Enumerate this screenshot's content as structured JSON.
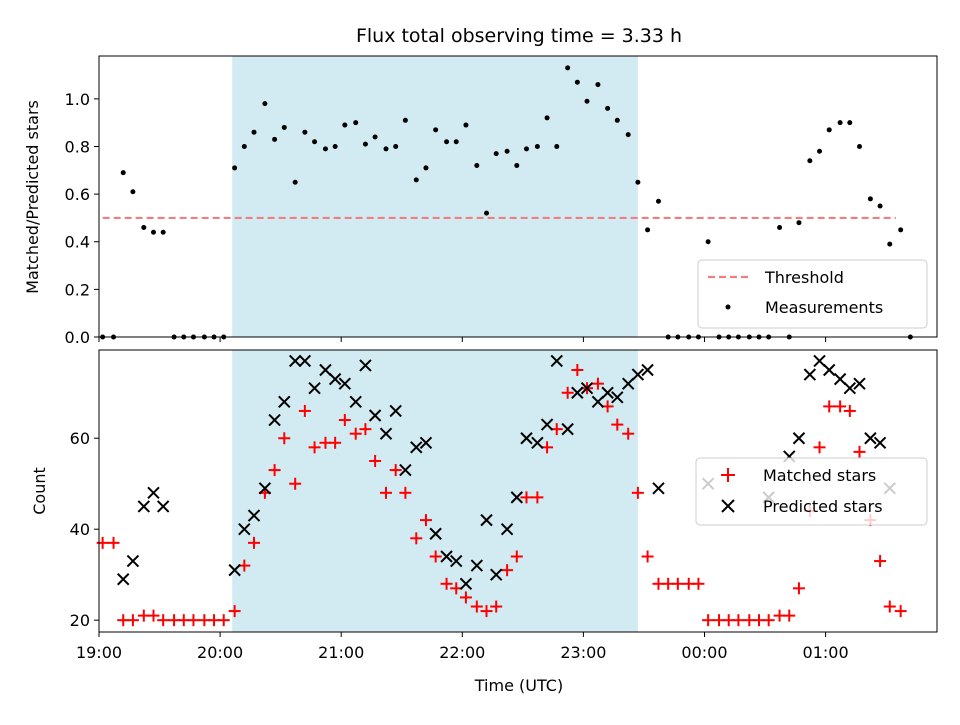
{
  "chart_data": {
    "type": "scatter",
    "title": "Flux total observing time = 3.33 h",
    "xlabel": "Time (UTC)",
    "x_ticks": [
      "19:00",
      "20:00",
      "21:00",
      "22:00",
      "23:00",
      "00:00",
      "01:00"
    ],
    "shaded_interval": {
      "start_hours": 20.1,
      "end_hours": 23.45,
      "color": "#add8e6"
    },
    "top": {
      "ylabel": "Matched/Predicted stars",
      "ylim": [
        0,
        1.18
      ],
      "yticks": [
        "0.0",
        "0.2",
        "0.4",
        "0.6",
        "0.8",
        "1.0"
      ],
      "legend": {
        "location": "lower right",
        "entries": [
          "Threshold",
          "Measurements"
        ]
      },
      "threshold": {
        "name": "Threshold",
        "value": 0.5,
        "x_start": 19.03,
        "x_end": 25.58,
        "color": "#f08080"
      },
      "measurements": {
        "name": "Measurements",
        "color": "#000000",
        "x": [
          19.03,
          19.12,
          19.2,
          19.28,
          19.37,
          19.45,
          19.53,
          19.62,
          19.7,
          19.78,
          19.87,
          19.95,
          20.03,
          20.12,
          20.2,
          20.28,
          20.37,
          20.45,
          20.53,
          20.62,
          20.7,
          20.78,
          20.87,
          20.95,
          21.03,
          21.12,
          21.2,
          21.28,
          21.37,
          21.45,
          21.53,
          21.62,
          21.7,
          21.78,
          21.87,
          21.95,
          22.03,
          22.12,
          22.2,
          22.28,
          22.37,
          22.45,
          22.53,
          22.62,
          22.7,
          22.78,
          22.87,
          22.95,
          23.03,
          23.12,
          23.2,
          23.28,
          23.37,
          23.45,
          23.53,
          23.62,
          23.7,
          23.78,
          23.87,
          23.95,
          24.03,
          24.12,
          24.2,
          24.28,
          24.37,
          24.45,
          24.53,
          24.62,
          24.7,
          24.78,
          24.87,
          24.95,
          25.03,
          25.12,
          25.2,
          25.28,
          25.37,
          25.45,
          25.53,
          25.62
        ],
        "y": [
          0.0,
          0.0,
          0.69,
          0.61,
          0.46,
          0.44,
          0.44,
          0.0,
          0.0,
          0.0,
          0.0,
          0.0,
          0.0,
          0.71,
          0.8,
          0.86,
          0.98,
          0.83,
          0.88,
          0.65,
          0.86,
          0.82,
          0.79,
          0.8,
          0.89,
          0.9,
          0.81,
          0.84,
          0.79,
          0.8,
          0.91,
          0.66,
          0.71,
          0.87,
          0.82,
          0.82,
          0.89,
          0.72,
          0.52,
          0.77,
          0.78,
          0.72,
          0.79,
          0.8,
          0.92,
          0.8,
          1.13,
          1.07,
          0.99,
          1.06,
          0.96,
          0.91,
          0.85,
          0.65,
          0.45,
          0.57,
          0.0,
          0.0,
          0.0,
          0.0,
          0.4,
          0.0,
          0.0,
          0.0,
          0.0,
          0.0,
          0.0,
          0.46,
          0.0,
          0.48,
          0.74,
          0.78,
          0.87,
          0.9,
          0.9,
          0.8,
          0.58,
          0.55,
          0.39,
          0.45
        ]
      },
      "extra_point": {
        "x": 25.7,
        "y": 0.0
      }
    },
    "bottom": {
      "ylabel": "Count",
      "ylim": [
        17.4,
        79.4
      ],
      "yticks": [
        "20",
        "40",
        "60"
      ],
      "legend": {
        "location": "center right",
        "entries": [
          "Matched stars",
          "Predicted stars"
        ]
      },
      "matched": {
        "name": "Matched stars",
        "color": "#ff0000",
        "x": [
          19.03,
          19.12,
          19.2,
          19.28,
          19.37,
          19.45,
          19.53,
          19.62,
          19.7,
          19.78,
          19.87,
          19.95,
          20.03,
          20.12,
          20.2,
          20.28,
          20.37,
          20.45,
          20.53,
          20.62,
          20.7,
          20.78,
          20.87,
          20.95,
          21.03,
          21.12,
          21.2,
          21.28,
          21.37,
          21.45,
          21.53,
          21.62,
          21.7,
          21.78,
          21.87,
          21.95,
          22.03,
          22.12,
          22.2,
          22.28,
          22.37,
          22.45,
          22.53,
          22.62,
          22.7,
          22.78,
          22.87,
          22.95,
          23.03,
          23.12,
          23.2,
          23.28,
          23.37,
          23.45,
          23.53,
          23.62,
          23.7,
          23.78,
          23.87,
          23.95,
          24.03,
          24.12,
          24.2,
          24.28,
          24.37,
          24.45,
          24.53,
          24.62,
          24.7,
          24.78,
          24.87,
          24.95,
          25.03,
          25.12,
          25.2,
          25.28,
          25.37,
          25.45,
          25.53,
          25.62
        ],
        "y": [
          37,
          37,
          20,
          20,
          21,
          21,
          20,
          20,
          20,
          20,
          20,
          20,
          20,
          22,
          32,
          37,
          48,
          53,
          60,
          50,
          66,
          58,
          59,
          59,
          64,
          61,
          62,
          55,
          48,
          53,
          48,
          38,
          42,
          34,
          28,
          27,
          25,
          23,
          22,
          23,
          31,
          34,
          47,
          47,
          58,
          62,
          70,
          75,
          71,
          72,
          67,
          63,
          61,
          48,
          34,
          28,
          28,
          28,
          28,
          28,
          20,
          20,
          20,
          20,
          20,
          20,
          20,
          21,
          21,
          27,
          44,
          58,
          67,
          67,
          66,
          57,
          42,
          33,
          23,
          22
        ]
      },
      "predicted": {
        "name": "Predicted stars",
        "color": "#000000",
        "x": [
          19.2,
          19.28,
          19.37,
          19.45,
          19.53,
          20.12,
          20.2,
          20.28,
          20.37,
          20.45,
          20.53,
          20.62,
          20.7,
          20.78,
          20.87,
          20.95,
          21.03,
          21.12,
          21.2,
          21.28,
          21.37,
          21.45,
          21.53,
          21.62,
          21.7,
          21.78,
          21.87,
          21.95,
          22.03,
          22.12,
          22.2,
          22.28,
          22.37,
          22.45,
          22.53,
          22.62,
          22.7,
          22.78,
          22.87,
          22.95,
          23.03,
          23.12,
          23.2,
          23.28,
          23.37,
          23.45,
          23.53,
          23.62,
          24.03,
          24.53,
          24.7,
          24.78,
          24.87,
          24.95,
          25.03,
          25.12,
          25.2,
          25.28,
          25.37,
          25.45,
          25.53
        ],
        "y": [
          29,
          33,
          45,
          48,
          45,
          31,
          40,
          43,
          49,
          64,
          68,
          77,
          77,
          71,
          75,
          73,
          72,
          68,
          76,
          65,
          61,
          66,
          53,
          58,
          59,
          39,
          34,
          33,
          28,
          32,
          42,
          30,
          40,
          47,
          60,
          59,
          63,
          77,
          62,
          70,
          71,
          68,
          70,
          69,
          72,
          74,
          75,
          49,
          50,
          47,
          56,
          60,
          74,
          77,
          75,
          73,
          71,
          72,
          60,
          59,
          49
        ]
      }
    }
  }
}
